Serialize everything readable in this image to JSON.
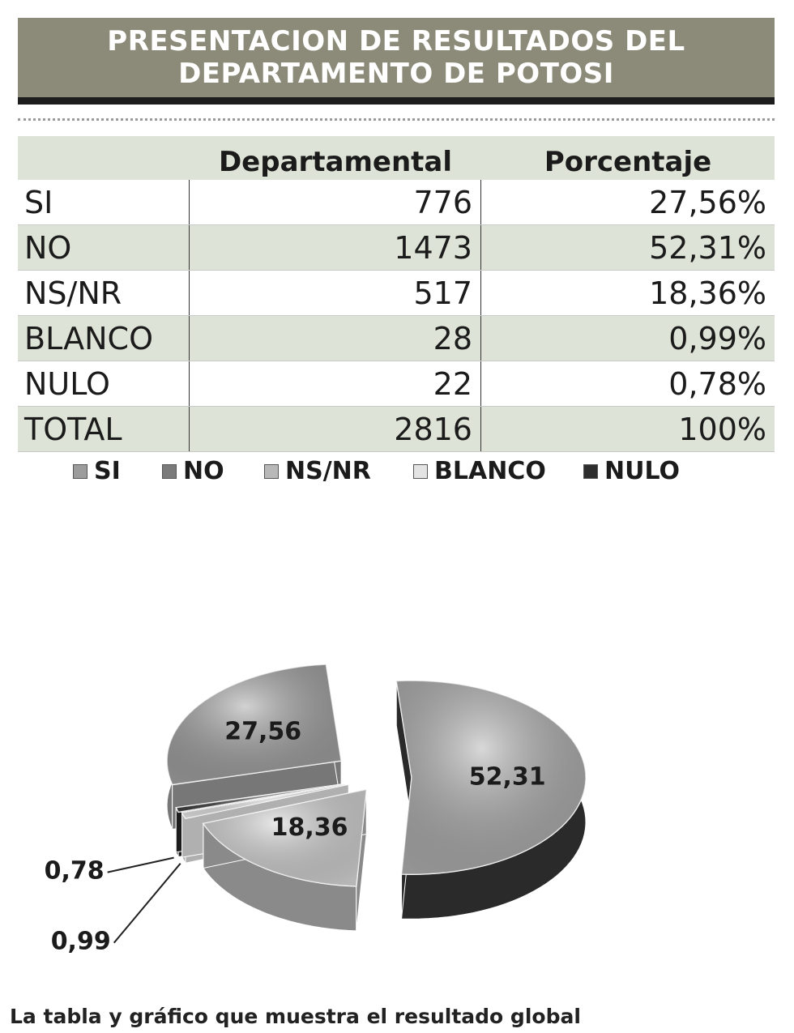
{
  "title": {
    "line1": "PRESENTACION DE RESULTADOS DEL",
    "line2": "DEPARTAMENTO DE POTOSI"
  },
  "table": {
    "headers": [
      "",
      "Departamental",
      "Porcentaje"
    ],
    "rows": [
      {
        "label": "SI",
        "value": "776",
        "percent": "27,56%"
      },
      {
        "label": "NO",
        "value": "1473",
        "percent": "52,31%"
      },
      {
        "label": "NS/NR",
        "value": "517",
        "percent": "18,36%"
      },
      {
        "label": "BLANCO",
        "value": "28",
        "percent": "0,99%"
      },
      {
        "label": "NULO",
        "value": "22",
        "percent": "0,78%"
      },
      {
        "label": "TOTAL",
        "value": "2816",
        "percent": "100%"
      }
    ]
  },
  "legend": [
    "SI",
    "NO",
    "NS/NR",
    "BLANCO",
    "NULO"
  ],
  "chart_data": {
    "type": "pie",
    "title": "",
    "categories": [
      "SI",
      "NO",
      "NS/NR",
      "BLANCO",
      "NULO"
    ],
    "values": [
      27.56,
      52.31,
      18.36,
      0.99,
      0.78
    ],
    "labels": [
      "27,56",
      "52,31",
      "18,36",
      "0,99",
      "0,78"
    ],
    "colors": [
      "#9c9c9c",
      "#a9a9a9",
      "#cfcfcf",
      "#e3e3e3",
      "#3c3c3c"
    ],
    "side_colors": [
      "#777777",
      "#2a2a2a",
      "#8a8a8a",
      "#b0b0b0",
      "#1c1c1c"
    ],
    "style": "3d-exploded"
  },
  "caption": "La tabla y gráfico que muestra el resultado global"
}
